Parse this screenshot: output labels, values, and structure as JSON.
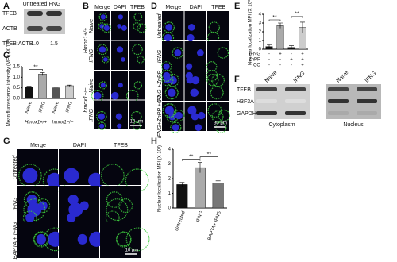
{
  "figure": {
    "panel_labels": [
      "A",
      "B",
      "C",
      "D",
      "E",
      "F",
      "G",
      "H"
    ],
    "a": {
      "columns": [
        "Untreated",
        "IFNG"
      ],
      "rows": [
        "TFEB",
        "ACTB"
      ],
      "ratio_label": "TFEB:ACTB",
      "ratios": [
        "1.0",
        "1.5"
      ]
    },
    "b": {
      "columns": [
        "Merge",
        "DAPI",
        "TFEB"
      ],
      "groups": [
        "Hmox1+/+",
        "hmox1−/−"
      ],
      "rows": [
        "Naive",
        "IFNG",
        "Naive",
        "IFNG"
      ],
      "scale": "10 µm"
    },
    "d": {
      "columns": [
        "Merge",
        "DAPI",
        "TFEB"
      ],
      "rows": [
        "Untreated",
        "IFNG",
        "IFNG +ZnPP",
        "IFNG+ZnPP +CO"
      ],
      "scale": "30 µm"
    },
    "f": {
      "lanes": [
        "Naive",
        "IFNG",
        "Naive",
        "IFNG"
      ],
      "rows": [
        "TFEB",
        "H3F3A",
        "GAPDH"
      ],
      "fractions": [
        "Cytoplasm",
        "Nucleus"
      ]
    },
    "g": {
      "columns": [
        "Merge",
        "DAPI",
        "TFEB"
      ],
      "rows": [
        "Untreated",
        "IFNG",
        "BAPTA + IFNG"
      ],
      "scale": "10 µm"
    }
  },
  "chart_data": [
    {
      "type": "bar",
      "y_label": "Mean fluorescence intensity (MFI) (X 10³)",
      "categories": [
        "Naive",
        "IFNG",
        "Naive",
        "IFNG"
      ],
      "group_labels": [
        "Hmox1+/+",
        "hmox1−/−"
      ],
      "values": [
        0.55,
        1.15,
        0.5,
        0.6
      ],
      "errors": [
        0.03,
        0.07,
        0.03,
        0.03
      ],
      "colors": [
        "#111111",
        "#aaaaaa",
        "#555555",
        "#cccccc"
      ],
      "ylim": [
        0,
        1.5
      ],
      "yticks": [
        {
          "value": 0,
          "label": "0.0"
        },
        {
          "value": 0.5,
          "label": "0.5"
        },
        {
          "value": 1,
          "label": "1.0"
        },
        {
          "value": 1.5,
          "label": "1.5"
        }
      ],
      "significance": [
        "**"
      ]
    },
    {
      "type": "bar",
      "y_label": "Nuclear localization MFI (X 10³)",
      "categories": [
        null,
        null,
        null,
        null
      ],
      "conditions": [
        {
          "name": "IFNG",
          "signs": [
            "-",
            "+",
            "-",
            "+"
          ]
        },
        {
          "name": "ZnPP",
          "signs": [
            "-",
            "-",
            "+",
            "+"
          ]
        },
        {
          "name": "CO",
          "signs": [
            "-",
            "-",
            "-",
            "+"
          ]
        }
      ],
      "values": [
        0.3,
        2.7,
        0.2,
        2.5
      ],
      "errors": [
        0.2,
        0.3,
        0.2,
        0.6
      ],
      "colors": [
        "#111111",
        "#aaaaaa",
        "#111111",
        "#cccccc"
      ],
      "ylim": [
        0,
        4
      ],
      "yticks": [
        0,
        1,
        2,
        3,
        4
      ],
      "significance": [
        "**",
        "**"
      ]
    },
    {
      "type": "bar",
      "y_label": "Nuclear localization MFI (X 10³)",
      "categories": [
        "Untreated",
        "IFNG",
        "BAPTA+ IFNG"
      ],
      "values": [
        1.6,
        2.75,
        1.7
      ],
      "errors": [
        0.15,
        0.35,
        0.15
      ],
      "colors": [
        "#111111",
        "#aaaaaa",
        "#777777"
      ],
      "ylim": [
        0,
        4
      ],
      "yticks": [
        0,
        1,
        2,
        3,
        4
      ],
      "significance": [
        "**",
        "**"
      ]
    }
  ]
}
